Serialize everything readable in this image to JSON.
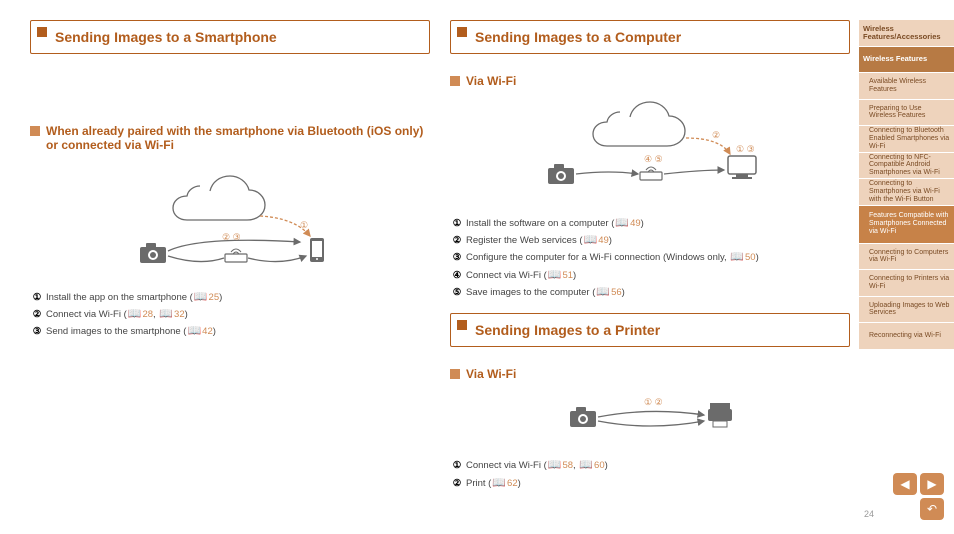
{
  "accent_color": "#b25d1d",
  "icon_fill": "#6b6b6b",
  "arrow_color": "#d08b55",
  "left": {
    "header": "Sending Images to a Smartphone",
    "sub": "When already paired with the smartphone via Bluetooth (iOS only) or connected via Wi-Fi",
    "steps": [
      {
        "text": "Install the app on the smartphone (",
        "suffix": "25",
        "tail": ")"
      },
      {
        "text": "Connect via Wi-Fi (",
        "suffix": "28",
        "mid": ", ",
        "suffix2": "32",
        "tail": ")"
      },
      {
        "text": "Send images to the smartphone (",
        "suffix": "42",
        "tail": ")"
      }
    ],
    "diag": {
      "labels": [
        "①",
        "②",
        "③"
      ]
    }
  },
  "right_top": {
    "header": "Sending Images to a Computer",
    "sub": "Via Wi-Fi",
    "steps": [
      {
        "text": "Install the software on a computer (",
        "suffix": "49",
        "tail": ")"
      },
      {
        "text": "Register the Web services (",
        "suffix": "49",
        "tail": ")"
      },
      {
        "text": "Configure the computer for a Wi-Fi connection (Windows only, ",
        "suffix": "50",
        "tail": ")"
      },
      {
        "text": "Connect via Wi-Fi (",
        "suffix": "51",
        "tail": ")"
      },
      {
        "text": "Save images to the computer (",
        "suffix": "56",
        "tail": ")"
      }
    ],
    "diag": {
      "labels": [
        "①",
        "②",
        "③",
        "④",
        "⑤"
      ]
    }
  },
  "right_bot": {
    "header": "Sending Images to a Printer",
    "sub": "Via Wi-Fi",
    "steps": [
      {
        "text": "Connect via Wi-Fi (",
        "suffix": "58",
        "mid": ", ",
        "suffix2": "60",
        "tail": ")"
      },
      {
        "text": "Print (",
        "suffix": "62",
        "tail": ")"
      }
    ],
    "diag": {
      "labels": [
        "①",
        "②"
      ]
    }
  },
  "tabs": [
    {
      "label": "Wireless Features/Accessories",
      "cls": "level0"
    },
    {
      "label": "Wireless Features",
      "cls": "level0 active"
    },
    {
      "label": "Available Wireless Features",
      "cls": "level1"
    },
    {
      "label": "Preparing to Use Wireless Features",
      "cls": "level1"
    },
    {
      "label": "Connecting to Bluetooth Enabled Smartphones via Wi-Fi",
      "cls": "level1"
    },
    {
      "label": "Connecting to NFC-Compatible Android Smartphones via Wi-Fi",
      "cls": "level1"
    },
    {
      "label": "Connecting to Smartphones via Wi-Fi with the Wi-Fi Button",
      "cls": "level1"
    },
    {
      "label": "Features Compatible with Smartphones Connected via Wi-Fi",
      "cls": "level1 highlight"
    },
    {
      "label": "Connecting to Computers via Wi-Fi",
      "cls": "level1"
    },
    {
      "label": "Connecting to Printers via Wi-Fi",
      "cls": "level1"
    },
    {
      "label": "Uploading Images to Web Services",
      "cls": "level1"
    },
    {
      "label": "Reconnecting via Wi-Fi",
      "cls": "level1"
    }
  ],
  "page_number": "24"
}
